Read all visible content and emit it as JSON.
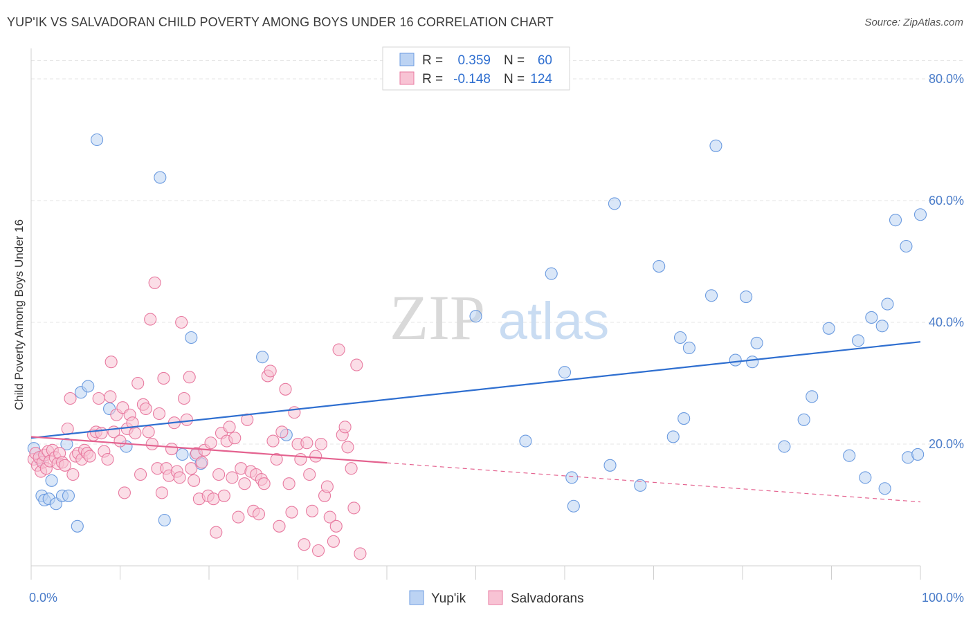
{
  "header": {
    "title": "YUP'IK VS SALVADORAN CHILD POVERTY AMONG BOYS UNDER 16 CORRELATION CHART",
    "source": "Source: ZipAtlas.com"
  },
  "watermark": {
    "zip": "ZIP",
    "atlas": "atlas"
  },
  "chart_data": {
    "type": "scatter",
    "title": "YUP'IK VS SALVADORAN CHILD POVERTY AMONG BOYS UNDER 16 CORRELATION CHART",
    "xlabel": "",
    "ylabel": "Child Poverty Among Boys Under 16",
    "xlim": [
      0,
      100
    ],
    "ylim": [
      0,
      85
    ],
    "y_ticks": [
      20,
      40,
      60,
      80
    ],
    "y_tick_labels": [
      "20.0%",
      "40.0%",
      "60.0%",
      "80.0%"
    ],
    "x_tick_labels": [
      "0.0%",
      "100.0%"
    ],
    "grid": true,
    "legend_position": "top-center",
    "stats": [
      {
        "r_label": "R =",
        "r": "0.359",
        "n_label": "N =",
        "n": "60"
      },
      {
        "r_label": "R =",
        "r": "-0.148",
        "n_label": "N =",
        "n": "124"
      }
    ],
    "series": [
      {
        "name": "Yup'ik",
        "color": "#6b9be0",
        "fill": "#bcd3f3",
        "trend": {
          "x0": 0,
          "y0": 21.0,
          "x1": 100,
          "y1": 36.8,
          "dashed_from": null
        },
        "points": [
          [
            7.4,
            70.0
          ],
          [
            14.5,
            63.8
          ],
          [
            0.3,
            19.3
          ],
          [
            1.0,
            17.5
          ],
          [
            1.2,
            11.5
          ],
          [
            1.5,
            10.8
          ],
          [
            2.0,
            11.0
          ],
          [
            2.3,
            14.0
          ],
          [
            2.8,
            10.2
          ],
          [
            3.5,
            11.5
          ],
          [
            4.2,
            11.5
          ],
          [
            4.0,
            20.0
          ],
          [
            5.2,
            6.5
          ],
          [
            5.6,
            28.5
          ],
          [
            6.4,
            29.5
          ],
          [
            8.8,
            25.8
          ],
          [
            10.7,
            19.6
          ],
          [
            15.0,
            7.5
          ],
          [
            17.0,
            18.3
          ],
          [
            18.5,
            18.2
          ],
          [
            19.1,
            16.8
          ],
          [
            18.0,
            37.5
          ],
          [
            26.0,
            34.3
          ],
          [
            28.7,
            21.5
          ],
          [
            50.0,
            41.0
          ],
          [
            55.6,
            20.5
          ],
          [
            58.5,
            48.0
          ],
          [
            60.0,
            31.8
          ],
          [
            60.8,
            14.5
          ],
          [
            61.0,
            9.8
          ],
          [
            65.1,
            16.5
          ],
          [
            65.6,
            59.5
          ],
          [
            68.5,
            13.2
          ],
          [
            70.6,
            49.2
          ],
          [
            72.2,
            21.2
          ],
          [
            73.0,
            37.5
          ],
          [
            73.4,
            24.2
          ],
          [
            74.0,
            35.8
          ],
          [
            76.5,
            44.4
          ],
          [
            77.0,
            69.0
          ],
          [
            79.2,
            33.8
          ],
          [
            80.4,
            44.2
          ],
          [
            81.1,
            33.5
          ],
          [
            81.6,
            36.6
          ],
          [
            84.7,
            19.6
          ],
          [
            86.9,
            24.0
          ],
          [
            87.8,
            27.8
          ],
          [
            89.7,
            39.0
          ],
          [
            92.0,
            18.1
          ],
          [
            93.0,
            37.0
          ],
          [
            93.8,
            14.5
          ],
          [
            94.5,
            40.8
          ],
          [
            95.7,
            39.4
          ],
          [
            96.3,
            43.0
          ],
          [
            96.0,
            12.7
          ],
          [
            97.2,
            56.8
          ],
          [
            98.4,
            52.5
          ],
          [
            98.6,
            17.8
          ],
          [
            100.0,
            57.7
          ],
          [
            99.7,
            18.3
          ]
        ]
      },
      {
        "name": "Salvadorans",
        "color": "#e87aa0",
        "fill": "#f8c3d4",
        "trend": {
          "x0": 0,
          "y0": 21.2,
          "x1": 100,
          "y1": 10.5,
          "dashed_from": 40
        },
        "points": [
          [
            0.3,
            17.5
          ],
          [
            0.5,
            18.5
          ],
          [
            0.7,
            16.5
          ],
          [
            0.9,
            17.8
          ],
          [
            1.1,
            15.5
          ],
          [
            1.3,
            17.0
          ],
          [
            1.5,
            18.2
          ],
          [
            1.7,
            16.0
          ],
          [
            1.9,
            18.8
          ],
          [
            2.1,
            17.2
          ],
          [
            2.4,
            19.0
          ],
          [
            2.7,
            17.8
          ],
          [
            3.0,
            16.8
          ],
          [
            3.2,
            18.5
          ],
          [
            3.5,
            17.0
          ],
          [
            3.8,
            16.5
          ],
          [
            4.1,
            22.5
          ],
          [
            4.4,
            27.5
          ],
          [
            4.7,
            15.0
          ],
          [
            5.0,
            18.0
          ],
          [
            5.3,
            18.5
          ],
          [
            5.7,
            17.5
          ],
          [
            6.0,
            19.0
          ],
          [
            6.3,
            18.5
          ],
          [
            6.6,
            18.0
          ],
          [
            7.0,
            21.5
          ],
          [
            7.3,
            22.0
          ],
          [
            7.6,
            27.5
          ],
          [
            7.9,
            21.8
          ],
          [
            8.2,
            18.8
          ],
          [
            8.6,
            17.5
          ],
          [
            8.9,
            27.8
          ],
          [
            9.0,
            33.5
          ],
          [
            9.3,
            22.0
          ],
          [
            9.6,
            24.8
          ],
          [
            10.0,
            20.5
          ],
          [
            10.3,
            26.0
          ],
          [
            10.5,
            12.0
          ],
          [
            10.8,
            22.5
          ],
          [
            11.1,
            24.8
          ],
          [
            11.4,
            23.5
          ],
          [
            11.7,
            21.8
          ],
          [
            12.0,
            30.0
          ],
          [
            12.3,
            15.0
          ],
          [
            12.6,
            26.5
          ],
          [
            12.9,
            25.8
          ],
          [
            13.2,
            22.0
          ],
          [
            13.4,
            40.5
          ],
          [
            13.6,
            20.0
          ],
          [
            13.9,
            46.5
          ],
          [
            14.2,
            16.0
          ],
          [
            14.4,
            25.0
          ],
          [
            14.7,
            12.0
          ],
          [
            14.9,
            30.8
          ],
          [
            15.2,
            16.0
          ],
          [
            15.5,
            14.8
          ],
          [
            15.8,
            19.2
          ],
          [
            16.1,
            23.5
          ],
          [
            16.4,
            15.5
          ],
          [
            16.7,
            14.5
          ],
          [
            16.9,
            40.0
          ],
          [
            17.2,
            27.5
          ],
          [
            17.5,
            24.0
          ],
          [
            17.8,
            31.0
          ],
          [
            18.0,
            16.0
          ],
          [
            18.3,
            14.0
          ],
          [
            18.6,
            18.5
          ],
          [
            18.9,
            11.0
          ],
          [
            19.2,
            17.0
          ],
          [
            19.5,
            19.0
          ],
          [
            19.9,
            11.5
          ],
          [
            20.2,
            20.2
          ],
          [
            20.5,
            11.0
          ],
          [
            20.8,
            5.5
          ],
          [
            21.1,
            15.0
          ],
          [
            21.4,
            21.8
          ],
          [
            21.7,
            11.5
          ],
          [
            22.0,
            20.5
          ],
          [
            22.3,
            22.8
          ],
          [
            22.6,
            14.5
          ],
          [
            22.9,
            21.0
          ],
          [
            23.3,
            8.0
          ],
          [
            23.6,
            16.0
          ],
          [
            24.0,
            13.5
          ],
          [
            24.3,
            24.0
          ],
          [
            24.7,
            15.5
          ],
          [
            25.0,
            9.0
          ],
          [
            25.3,
            15.0
          ],
          [
            25.6,
            8.5
          ],
          [
            25.9,
            14.2
          ],
          [
            26.2,
            13.5
          ],
          [
            26.6,
            31.2
          ],
          [
            26.9,
            32.0
          ],
          [
            27.2,
            20.5
          ],
          [
            27.6,
            17.5
          ],
          [
            27.9,
            6.5
          ],
          [
            28.2,
            22.0
          ],
          [
            28.6,
            29.0
          ],
          [
            29.0,
            13.5
          ],
          [
            29.3,
            8.8
          ],
          [
            29.6,
            25.2
          ],
          [
            30.0,
            20.0
          ],
          [
            30.3,
            17.5
          ],
          [
            30.7,
            3.5
          ],
          [
            31.0,
            20.2
          ],
          [
            31.3,
            15.0
          ],
          [
            31.6,
            9.0
          ],
          [
            32.0,
            18.0
          ],
          [
            32.3,
            2.5
          ],
          [
            32.6,
            20.0
          ],
          [
            33.0,
            11.5
          ],
          [
            33.3,
            13.0
          ],
          [
            33.6,
            8.0
          ],
          [
            34.0,
            4.0
          ],
          [
            34.3,
            6.5
          ],
          [
            34.6,
            35.5
          ],
          [
            35.0,
            21.5
          ],
          [
            35.3,
            22.8
          ],
          [
            35.6,
            19.5
          ],
          [
            36.0,
            16.0
          ],
          [
            36.3,
            9.5
          ],
          [
            36.6,
            33.0
          ],
          [
            37.0,
            2.0
          ]
        ]
      }
    ]
  }
}
